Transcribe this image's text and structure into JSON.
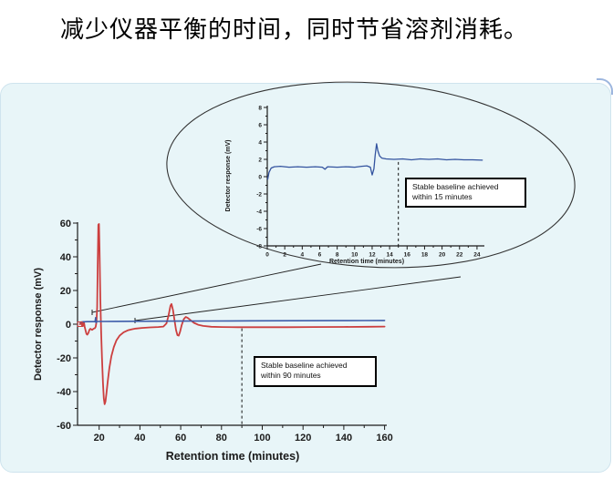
{
  "title": "减少仪器平衡的时间，同时节省溶剂消耗。",
  "annotations": {
    "inset": {
      "line1": "Stable baseline achieved",
      "line2": "within 15 minutes"
    },
    "main": {
      "line1": "Stable baseline achieved",
      "line2": "within 90 minutes"
    }
  },
  "colors": {
    "panel_bg": "#e8f5f8",
    "red_trace": "#cc3f3f",
    "blue_trace": "#3c5ba9",
    "inset_blue_trace": "#33539f",
    "axis": "#1b1b1b"
  },
  "chart_data": [
    {
      "id": "main",
      "type": "line",
      "xlabel": "Retention time (minutes)",
      "ylabel": "Detector response (mV)",
      "xlim": [
        10,
        162
      ],
      "ylim": [
        -60,
        60
      ],
      "xticks": [
        20,
        40,
        60,
        80,
        100,
        120,
        140,
        160
      ],
      "yticks": [
        -60,
        -40,
        -20,
        0,
        20,
        40,
        60
      ],
      "grid": false,
      "legend": "none",
      "vline": {
        "x": 90,
        "v_top": -2.5,
        "v_bottom": -60,
        "meaning": "Stable baseline achieved within 90 minutes"
      },
      "start_marker": [
        10.6,
        0
      ],
      "series": [
        {
          "name": "red-trace",
          "color": "#cc3f3f",
          "width": 1.8,
          "points": [
            [
              10.6,
              0
            ],
            [
              10.9,
              0.8
            ],
            [
              11.2,
              0.9
            ],
            [
              11.6,
              -0.8
            ],
            [
              12.0,
              -1.2
            ],
            [
              12.3,
              1.4
            ],
            [
              12.6,
              0.6
            ],
            [
              12.9,
              -1.5
            ],
            [
              13.3,
              -3.5
            ],
            [
              13.8,
              -5.8
            ],
            [
              14.2,
              -6.2
            ],
            [
              14.7,
              -5.2
            ],
            [
              15.2,
              -3.4
            ],
            [
              15.7,
              -2.7
            ],
            [
              16.1,
              -3.0
            ],
            [
              16.5,
              -3.4
            ],
            [
              16.9,
              -3.0
            ],
            [
              17.4,
              -2.6
            ],
            [
              17.9,
              -2.4
            ],
            [
              18.3,
              -1.5
            ],
            [
              18.7,
              1.5
            ],
            [
              19.0,
              10
            ],
            [
              19.3,
              35
            ],
            [
              19.6,
              59
            ],
            [
              19.9,
              59.5
            ],
            [
              20.2,
              45
            ],
            [
              20.6,
              15
            ],
            [
              21.0,
              -5
            ],
            [
              21.4,
              -20
            ],
            [
              21.9,
              -35
            ],
            [
              22.3,
              -44
            ],
            [
              22.7,
              -47.5
            ],
            [
              23.1,
              -46
            ],
            [
              23.6,
              -41
            ],
            [
              24.2,
              -34
            ],
            [
              25.0,
              -26
            ],
            [
              26.0,
              -19
            ],
            [
              27.2,
              -13.5
            ],
            [
              28.5,
              -9.5
            ],
            [
              30,
              -6.8
            ],
            [
              32,
              -4.8
            ],
            [
              34,
              -3.7
            ],
            [
              36,
              -3.0
            ],
            [
              38,
              -2.6
            ],
            [
              41,
              -2.2
            ],
            [
              45,
              -1.9
            ],
            [
              49,
              -1.7
            ],
            [
              51.5,
              -1.4
            ],
            [
              53,
              0.5
            ],
            [
              54,
              5
            ],
            [
              55,
              11
            ],
            [
              55.5,
              12
            ],
            [
              56.2,
              8.5
            ],
            [
              57,
              2
            ],
            [
              57.7,
              -3.5
            ],
            [
              58.4,
              -6.5
            ],
            [
              59,
              -6.8
            ],
            [
              59.7,
              -4.5
            ],
            [
              60.5,
              -0.5
            ],
            [
              61.5,
              3
            ],
            [
              62.5,
              4.3
            ],
            [
              63.6,
              3.6
            ],
            [
              65,
              2.2
            ],
            [
              66.5,
              0.8
            ],
            [
              68.5,
              -0.3
            ],
            [
              71,
              -1.0
            ],
            [
              75,
              -1.5
            ],
            [
              80,
              -1.7
            ],
            [
              88,
              -1.8
            ],
            [
              100,
              -1.8
            ],
            [
              112,
              -1.8
            ],
            [
              125,
              -1.7
            ],
            [
              140,
              -1.6
            ],
            [
              152,
              -1.5
            ],
            [
              160,
              -1.4
            ]
          ]
        },
        {
          "name": "blue-trace",
          "color": "#3c5ba9",
          "width": 1.6,
          "points": [
            [
              10.6,
              1.2
            ],
            [
              12,
              1.4
            ],
            [
              14,
              1.5
            ],
            [
              16,
              1.5
            ],
            [
              18.0,
              1.5
            ],
            [
              18.3,
              3.9
            ],
            [
              18.5,
              0.9
            ],
            [
              18.8,
              1.6
            ],
            [
              22,
              1.6
            ],
            [
              28,
              1.7
            ],
            [
              36,
              1.75
            ],
            [
              48,
              1.8
            ],
            [
              60,
              1.85
            ],
            [
              75,
              1.9
            ],
            [
              95,
              2.0
            ],
            [
              115,
              2.05
            ],
            [
              135,
              2.1
            ],
            [
              150,
              2.15
            ],
            [
              160,
              2.2
            ]
          ]
        }
      ]
    },
    {
      "id": "inset",
      "type": "line",
      "xlabel": "Retention time (minutes)",
      "ylabel": "Detector response (mV)",
      "xlim": [
        0,
        25
      ],
      "ylim": [
        -8,
        8
      ],
      "xticks": [
        0,
        2,
        4,
        6,
        8,
        10,
        12,
        14,
        16,
        18,
        20,
        22,
        24
      ],
      "yticks": [
        -8,
        -6,
        -4,
        -2,
        0,
        2,
        4,
        6,
        8
      ],
      "grid": false,
      "legend": "none",
      "vline": {
        "x": 15,
        "v_top": 1.7,
        "v_bottom": -8,
        "meaning": "Stable baseline achieved within 15 minutes"
      },
      "series": [
        {
          "name": "inset-blue-trace",
          "color": "#33539f",
          "width": 1.3,
          "points": [
            [
              0.05,
              -0.3
            ],
            [
              0.2,
              0.5
            ],
            [
              0.45,
              1.0
            ],
            [
              0.8,
              1.15
            ],
            [
              1.5,
              1.2
            ],
            [
              2.5,
              1.1
            ],
            [
              3.5,
              1.15
            ],
            [
              4.5,
              1.1
            ],
            [
              5.5,
              1.15
            ],
            [
              6.3,
              1.1
            ],
            [
              6.6,
              0.85
            ],
            [
              6.9,
              1.15
            ],
            [
              8,
              1.1
            ],
            [
              9,
              1.15
            ],
            [
              10,
              1.1
            ],
            [
              10.8,
              1.2
            ],
            [
              11.4,
              1.25
            ],
            [
              11.8,
              1.1
            ],
            [
              12.0,
              0.2
            ],
            [
              12.2,
              0.9
            ],
            [
              12.35,
              2.5
            ],
            [
              12.5,
              3.8
            ],
            [
              12.65,
              3.0
            ],
            [
              12.85,
              2.4
            ],
            [
              13.1,
              2.15
            ],
            [
              13.6,
              2.05
            ],
            [
              14.5,
              2.0
            ],
            [
              15.5,
              2.05
            ],
            [
              16.5,
              1.95
            ],
            [
              17.5,
              2.05
            ],
            [
              18.5,
              2.0
            ],
            [
              19.5,
              2.05
            ],
            [
              20.5,
              1.95
            ],
            [
              21.5,
              2.0
            ],
            [
              22.5,
              1.95
            ],
            [
              23.5,
              1.95
            ],
            [
              24.6,
              1.9
            ]
          ]
        }
      ]
    }
  ]
}
